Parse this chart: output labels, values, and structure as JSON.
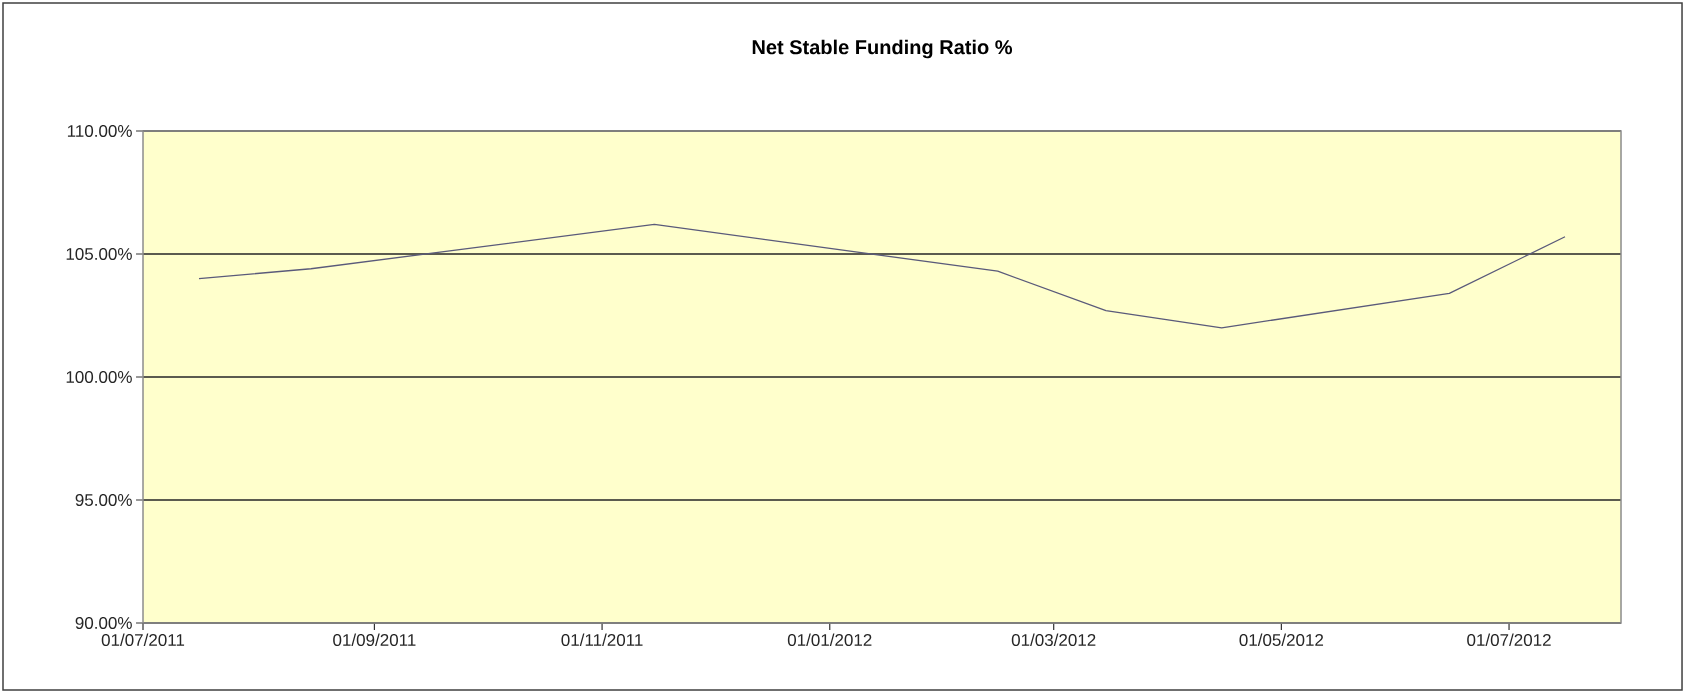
{
  "chart_data": {
    "type": "line",
    "title": "Net Stable Funding Ratio %",
    "x": [
      "2011-07-16",
      "2011-08-15",
      "2011-11-15",
      "2012-02-15",
      "2012-03-15",
      "2012-04-15",
      "2012-06-15",
      "2012-07-16"
    ],
    "series": [
      {
        "color": "#5a5a7a",
        "values": [
          104.0,
          104.4,
          106.2,
          104.3,
          102.7,
          102.0,
          103.4,
          105.7
        ]
      }
    ],
    "xlim": [
      "2011-07-01",
      "2012-07-31"
    ],
    "xticks": [
      {
        "value": "2011-07-01",
        "label": "01/07/2011"
      },
      {
        "value": "2011-09-01",
        "label": "01/09/2011"
      },
      {
        "value": "2011-11-01",
        "label": "01/11/2011"
      },
      {
        "value": "2012-01-01",
        "label": "01/01/2012"
      },
      {
        "value": "2012-03-01",
        "label": "01/03/2012"
      },
      {
        "value": "2012-05-01",
        "label": "01/05/2012"
      },
      {
        "value": "2012-07-01",
        "label": "01/07/2012"
      }
    ],
    "ylim": [
      90,
      110
    ],
    "yticks": [
      {
        "value": 90,
        "label": "90.00%"
      },
      {
        "value": 95,
        "label": "95.00%"
      },
      {
        "value": 100,
        "label": "100.00%"
      },
      {
        "value": 105,
        "label": "105.00%"
      },
      {
        "value": 110,
        "label": "110.00%"
      }
    ],
    "grid": "y",
    "marker": "none"
  }
}
